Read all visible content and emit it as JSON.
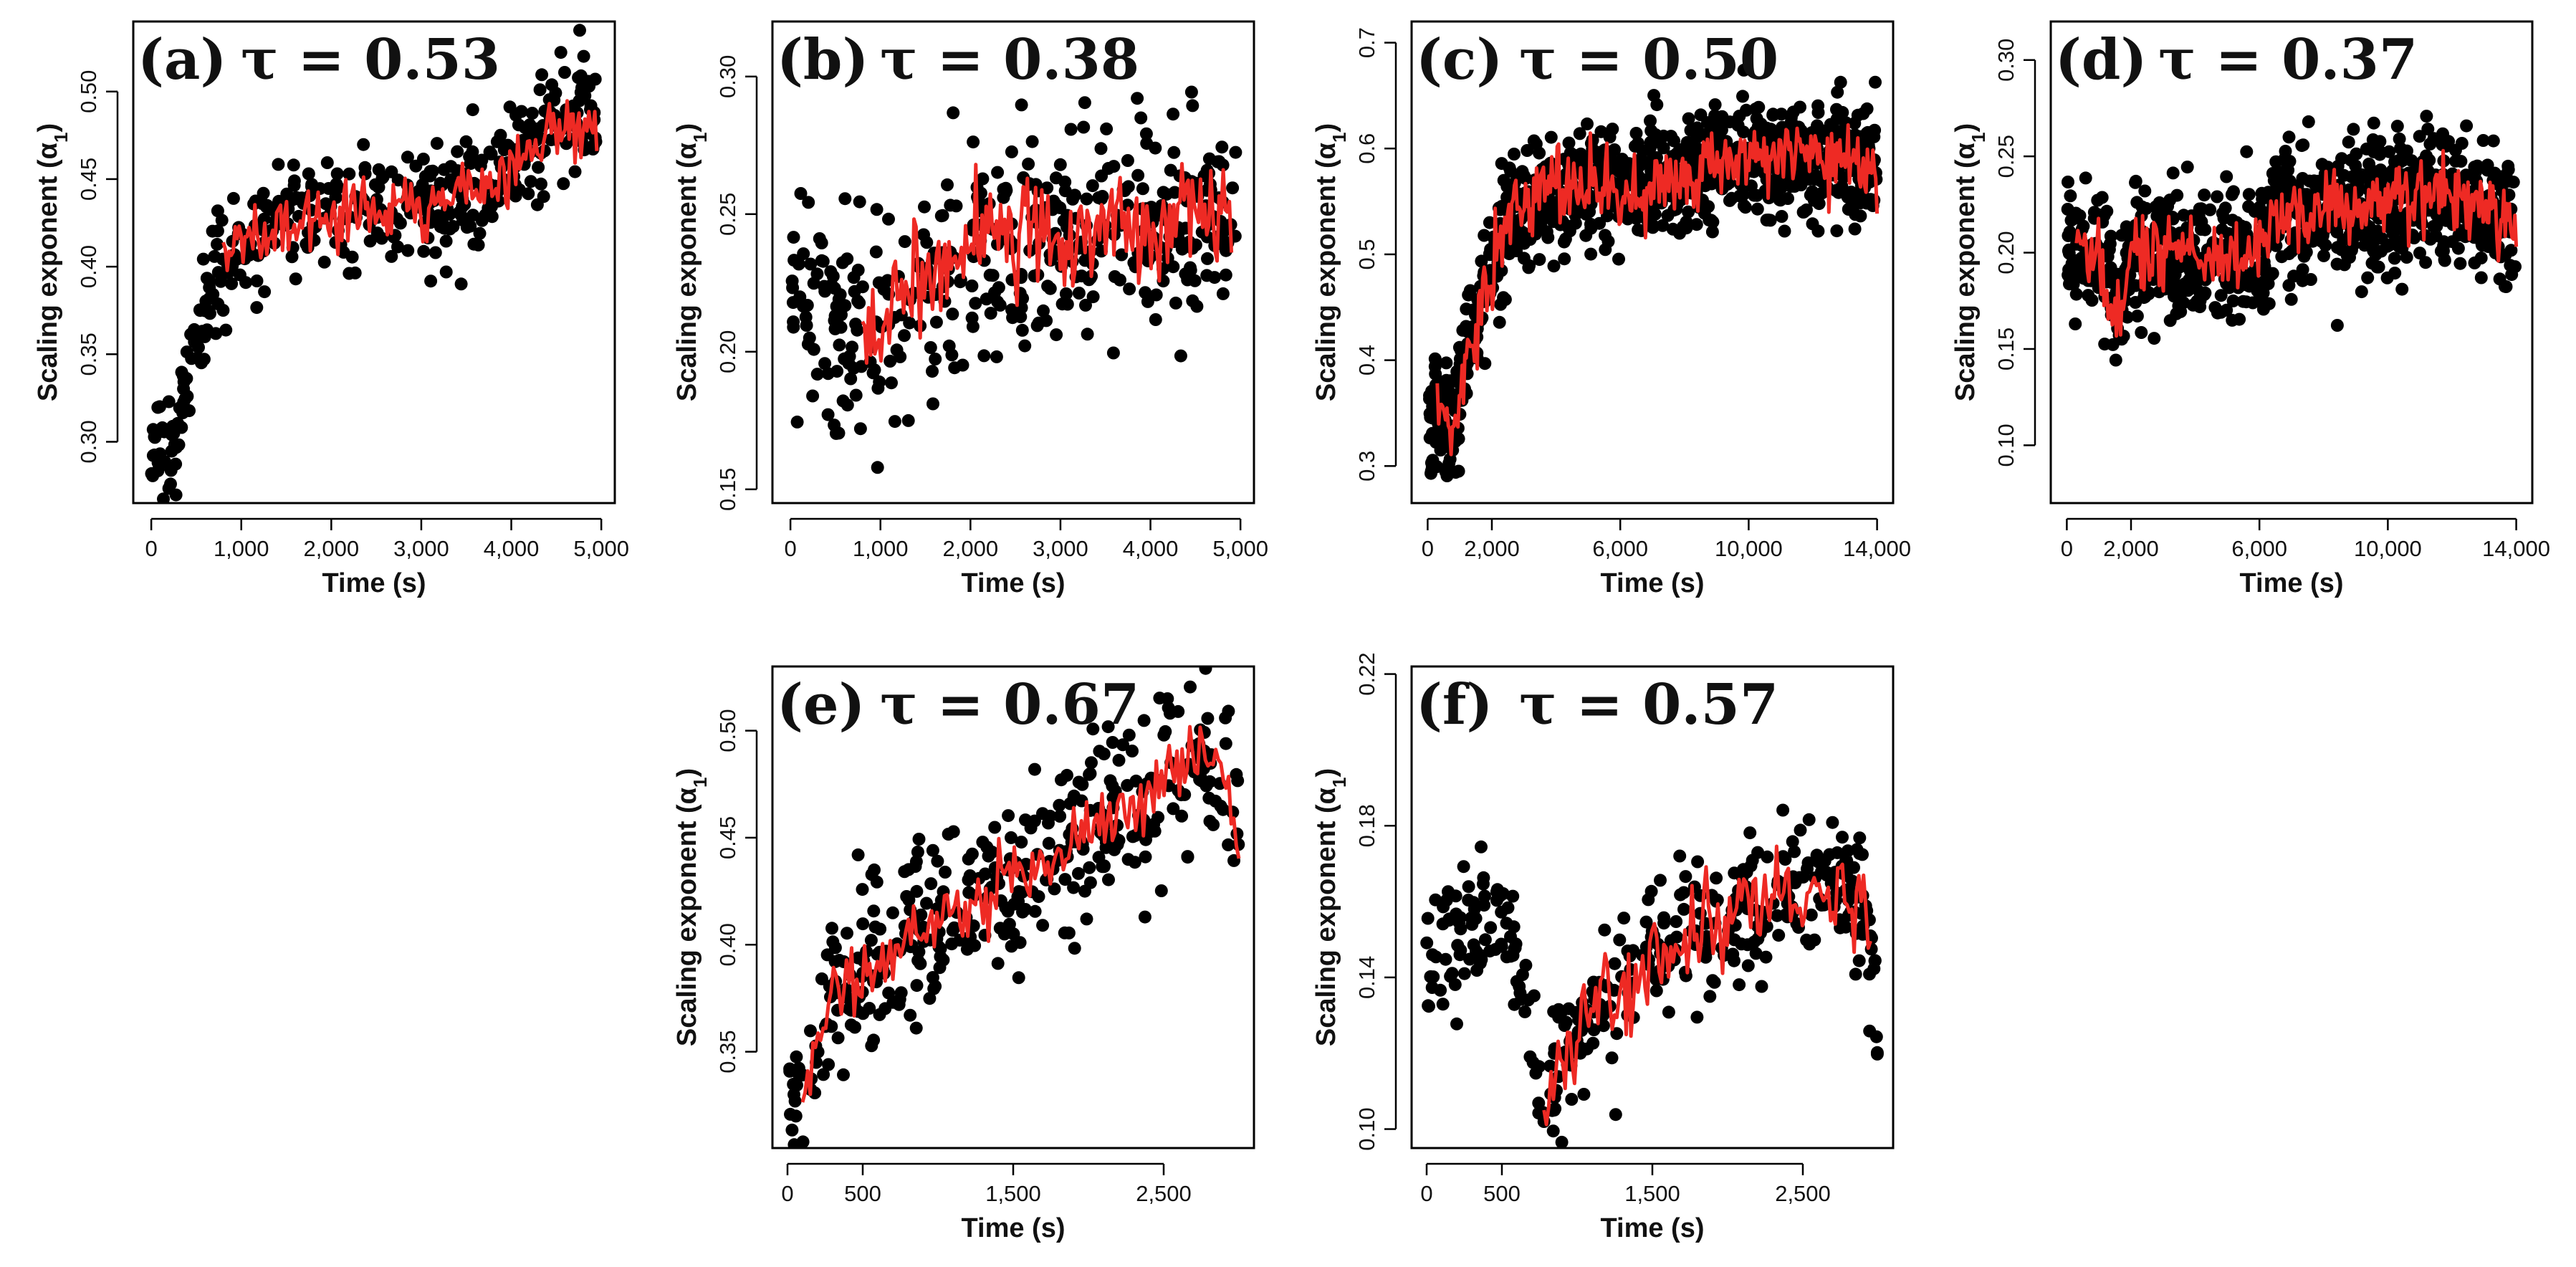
{
  "figure": {
    "colors": {
      "points": "#000000",
      "smooth_line": "#ee2a24",
      "frame": "#000000"
    }
  },
  "chart_data": [
    {
      "id": "a",
      "type": "scatter",
      "panel_label": "(a)",
      "tau_text": "τ = 0.53",
      "xlabel": "Time (s)",
      "ylabel": "Scaling exponent (α1)",
      "xlim": [
        -200,
        5150
      ],
      "ylim": [
        0.265,
        0.54
      ],
      "xticks": [
        0,
        1000,
        2000,
        3000,
        4000,
        5000
      ],
      "xtick_labels": [
        "0",
        "1,000",
        "2,000",
        "3,000",
        "4,000",
        "5,000"
      ],
      "yticks": [
        0.3,
        0.35,
        0.4,
        0.45,
        0.5
      ],
      "ytick_labels": [
        "0.30",
        "0.35",
        "0.40",
        "0.45",
        "0.50"
      ],
      "series": [
        {
          "kind": "points",
          "n": 430,
          "x_range": [
            0,
            4950
          ],
          "noise_sd": 0.017,
          "trend_x": [
            0,
            300,
            500,
            700,
            1000,
            2000,
            3000,
            3500,
            4000,
            4500,
            4950
          ],
          "trend_y": [
            0.29,
            0.31,
            0.35,
            0.4,
            0.415,
            0.43,
            0.435,
            0.44,
            0.455,
            0.485,
            0.49
          ]
        },
        {
          "kind": "line",
          "x_range": [
            800,
            4950
          ],
          "n": 190,
          "wiggle": 0.009,
          "trend_x": [
            800,
            1000,
            2000,
            3000,
            3500,
            4000,
            4500,
            4950
          ],
          "trend_y": [
            0.41,
            0.415,
            0.43,
            0.435,
            0.44,
            0.455,
            0.485,
            0.48
          ]
        }
      ]
    },
    {
      "id": "b",
      "type": "scatter",
      "panel_label": "(b)",
      "tau_text": "τ = 0.38",
      "xlabel": "Time (s)",
      "ylabel": "Scaling exponent (α1)",
      "xlim": [
        -200,
        5150
      ],
      "ylim": [
        0.145,
        0.32
      ],
      "xticks": [
        0,
        1000,
        2000,
        3000,
        4000,
        5000
      ],
      "xtick_labels": [
        "0",
        "1,000",
        "2,000",
        "3,000",
        "4,000",
        "5,000"
      ],
      "yticks": [
        0.15,
        0.2,
        0.25,
        0.3
      ],
      "ytick_labels": [
        "0.15",
        "0.20",
        "0.25",
        "0.30"
      ],
      "series": [
        {
          "kind": "points",
          "n": 420,
          "x_range": [
            0,
            4950
          ],
          "noise_sd": 0.02,
          "trend_x": [
            0,
            500,
            1000,
            1300,
            2000,
            2600,
            3000,
            4000,
            4950
          ],
          "trend_y": [
            0.22,
            0.215,
            0.205,
            0.22,
            0.235,
            0.245,
            0.24,
            0.25,
            0.25
          ]
        },
        {
          "kind": "line",
          "x_range": [
            800,
            4900
          ],
          "n": 180,
          "wiggle": 0.01,
          "trend_x": [
            800,
            1000,
            1300,
            2000,
            2600,
            3000,
            4000,
            4900
          ],
          "trend_y": [
            0.205,
            0.205,
            0.225,
            0.235,
            0.245,
            0.24,
            0.245,
            0.25
          ]
        }
      ]
    },
    {
      "id": "c",
      "type": "scatter",
      "panel_label": "(c)",
      "tau_text": "τ = 0.50",
      "xlabel": "Time (s)",
      "ylabel": "Scaling exponent (α1)",
      "xlim": [
        -500,
        14500
      ],
      "ylim": [
        0.265,
        0.72
      ],
      "xticks": [
        0,
        2000,
        6000,
        10000,
        14000
      ],
      "xtick_labels": [
        "0",
        "2,000",
        "6,000",
        "10,000",
        "14,000"
      ],
      "yticks": [
        0.3,
        0.4,
        0.5,
        0.6,
        0.7
      ],
      "ytick_labels": [
        "0.3",
        "0.4",
        "0.5",
        "0.6",
        "0.7"
      ],
      "series": [
        {
          "kind": "points",
          "n": 1000,
          "x_range": [
            0,
            14000
          ],
          "noise_sd": 0.028,
          "trend_x": [
            0,
            800,
            1500,
            2500,
            3500,
            6000,
            10000,
            14000
          ],
          "trend_y": [
            0.36,
            0.34,
            0.44,
            0.53,
            0.56,
            0.565,
            0.59,
            0.585
          ]
        },
        {
          "kind": "line",
          "x_range": [
            300,
            14000
          ],
          "n": 320,
          "wiggle": 0.018,
          "trend_x": [
            300,
            800,
            1500,
            2500,
            3500,
            6000,
            10000,
            14000
          ],
          "trend_y": [
            0.36,
            0.33,
            0.44,
            0.53,
            0.565,
            0.56,
            0.59,
            0.585
          ]
        }
      ]
    },
    {
      "id": "d",
      "type": "scatter",
      "panel_label": "(d)",
      "tau_text": "τ = 0.37",
      "xlabel": "Time (s)",
      "ylabel": "Scaling exponent (α1)",
      "xlim": [
        -500,
        14500
      ],
      "ylim": [
        0.07,
        0.32
      ],
      "xticks": [
        0,
        2000,
        6000,
        10000,
        14000
      ],
      "xtick_labels": [
        "0",
        "2,000",
        "6,000",
        "10,000",
        "14,000"
      ],
      "yticks": [
        0.1,
        0.15,
        0.2,
        0.25,
        0.3
      ],
      "ytick_labels": [
        "0.10",
        "0.15",
        "0.20",
        "0.25",
        "0.30"
      ],
      "series": [
        {
          "kind": "points",
          "n": 1000,
          "x_range": [
            0,
            14000
          ],
          "noise_sd": 0.017,
          "trend_x": [
            0,
            1000,
            1500,
            2000,
            4000,
            6000,
            6500,
            9000,
            12000,
            14000
          ],
          "trend_y": [
            0.205,
            0.2,
            0.17,
            0.2,
            0.2,
            0.2,
            0.22,
            0.225,
            0.23,
            0.215
          ]
        },
        {
          "kind": "line",
          "x_range": [
            300,
            14000
          ],
          "n": 320,
          "wiggle": 0.01,
          "trend_x": [
            300,
            1000,
            1500,
            2000,
            4000,
            6000,
            6500,
            9000,
            12000,
            14000
          ],
          "trend_y": [
            0.205,
            0.2,
            0.155,
            0.2,
            0.2,
            0.2,
            0.22,
            0.225,
            0.23,
            0.215
          ]
        }
      ]
    },
    {
      "id": "e",
      "type": "scatter",
      "panel_label": "(e)",
      "tau_text": "τ = 0.67",
      "xlabel": "Time (s)",
      "ylabel": "Scaling exponent (α1)",
      "xlim": [
        -100,
        3100
      ],
      "ylim": [
        0.305,
        0.53
      ],
      "xticks": [
        0,
        500,
        1500,
        2500
      ],
      "xtick_labels": [
        "0",
        "500",
        "1,500",
        "2,500"
      ],
      "yticks": [
        0.35,
        0.4,
        0.45,
        0.5
      ],
      "ytick_labels": [
        "0.35",
        "0.40",
        "0.45",
        "0.50"
      ],
      "series": [
        {
          "kind": "points",
          "n": 380,
          "x_range": [
            0,
            3000
          ],
          "noise_sd": 0.02,
          "trend_x": [
            0,
            100,
            300,
            800,
            1500,
            2200,
            2800,
            3000
          ],
          "trend_y": [
            0.33,
            0.33,
            0.375,
            0.4,
            0.43,
            0.465,
            0.485,
            0.465
          ]
        },
        {
          "kind": "line",
          "x_range": [
            100,
            3000
          ],
          "n": 170,
          "wiggle": 0.009,
          "trend_x": [
            100,
            300,
            800,
            1500,
            2200,
            2800,
            2950,
            3000
          ],
          "trend_y": [
            0.33,
            0.375,
            0.4,
            0.43,
            0.465,
            0.49,
            0.465,
            0.45
          ]
        }
      ]
    },
    {
      "id": "f",
      "type": "scatter",
      "panel_label": "(f)",
      "tau_text": "τ = 0.57",
      "xlabel": "Time (s)",
      "ylabel": "Scaling exponent (α1)",
      "xlim": [
        -100,
        3100
      ],
      "ylim": [
        0.095,
        0.222
      ],
      "xticks": [
        0,
        500,
        1500,
        2500
      ],
      "xtick_labels": [
        "0",
        "500",
        "1,500",
        "2,500"
      ],
      "yticks": [
        0.1,
        0.14,
        0.18,
        0.22
      ],
      "ytick_labels": [
        "0.10",
        "0.14",
        "0.18",
        "0.22"
      ],
      "series": [
        {
          "kind": "points",
          "n": 380,
          "x_range": [
            0,
            3000
          ],
          "noise_sd": 0.009,
          "trend_x": [
            0,
            200,
            500,
            650,
            750,
            1000,
            1500,
            2000,
            2500,
            2900,
            3000
          ],
          "trend_y": [
            0.14,
            0.15,
            0.155,
            0.14,
            0.11,
            0.125,
            0.145,
            0.155,
            0.165,
            0.16,
            0.13
          ]
        },
        {
          "kind": "line",
          "x_range": [
            780,
            2950
          ],
          "n": 140,
          "wiggle": 0.006,
          "trend_x": [
            780,
            1000,
            1500,
            2000,
            2500,
            2900,
            2950
          ],
          "trend_y": [
            0.105,
            0.125,
            0.145,
            0.155,
            0.165,
            0.16,
            0.15
          ]
        }
      ]
    }
  ]
}
